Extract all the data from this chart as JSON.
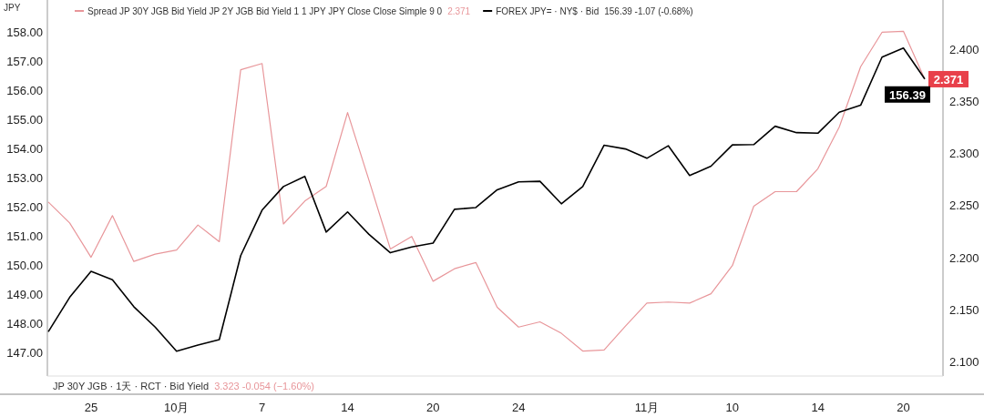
{
  "chart_data": {
    "type": "line",
    "ylabel": "JPY",
    "legend": "top left",
    "categories": [
      null,
      null,
      "25",
      null,
      null,
      null,
      "10月",
      null,
      null,
      null,
      "7",
      null,
      null,
      null,
      "14",
      null,
      null,
      null,
      "20",
      null,
      null,
      null,
      "24",
      null,
      null,
      null,
      null,
      null,
      "11月",
      null,
      null,
      null,
      "10",
      null,
      null,
      null,
      "14",
      null,
      null,
      null,
      "20",
      null
    ],
    "ylim": [
      146.2,
      159.1
    ],
    "yticks": [
      {
        "value": 147,
        "label": "147.00"
      },
      {
        "value": 148,
        "label": "148.00"
      },
      {
        "value": 149,
        "label": "149.00"
      },
      {
        "value": 150,
        "label": "150.00"
      },
      {
        "value": 151,
        "label": "151.00"
      },
      {
        "value": 152,
        "label": "152.00"
      },
      {
        "value": 153,
        "label": "153.00"
      },
      {
        "value": 154,
        "label": "154.00"
      },
      {
        "value": 155,
        "label": "155.00"
      },
      {
        "value": 156,
        "label": "156.00"
      },
      {
        "value": 157,
        "label": "157.00"
      },
      {
        "value": 158,
        "label": "158.00"
      }
    ],
    "y2lim": [
      2.086,
      2.447
    ],
    "y2ticks": [
      {
        "value": 2.1,
        "label": "2.100"
      },
      {
        "value": 2.15,
        "label": "2.150"
      },
      {
        "value": 2.2,
        "label": "2.200"
      },
      {
        "value": 2.25,
        "label": "2.250"
      },
      {
        "value": 2.3,
        "label": "2.300"
      },
      {
        "value": 2.35,
        "label": "2.350"
      },
      {
        "value": 2.4,
        "label": "2.400"
      }
    ],
    "series": [
      {
        "name": "Spread JP 30Y JGB Bid Yield JP 2Y JGB Bid Yield 1 1 JPY JPY Close Close Simple 9 0",
        "color": "#e8969a",
        "axis": "y2",
        "values": [
          2.253,
          2.233,
          2.2,
          2.24,
          2.196,
          2.203,
          2.207,
          2.231,
          2.215,
          2.38,
          2.386,
          2.232,
          2.254,
          2.268,
          2.339,
          2.274,
          2.208,
          2.22,
          2.177,
          2.189,
          2.195,
          2.152,
          2.133,
          2.138,
          2.127,
          2.11,
          2.111,
          2.134,
          2.156,
          2.157,
          2.156,
          2.165,
          2.192,
          2.249,
          2.263,
          2.263,
          2.285,
          2.325,
          2.383,
          2.416,
          2.417,
          2.371
        ],
        "value_labels": [
          null,
          null,
          null,
          null,
          null,
          null,
          null,
          null,
          null,
          null,
          null,
          null,
          null,
          null,
          null,
          null,
          null,
          null,
          null,
          null,
          null,
          null,
          null,
          null,
          null,
          null,
          null,
          null,
          null,
          null,
          null,
          null,
          null,
          null,
          null,
          null,
          null,
          null,
          null,
          null,
          null,
          "2.371"
        ]
      },
      {
        "name": "FOREX JPY= · NY$ · Bid",
        "color": "#000000",
        "axis": "y",
        "values": [
          147.72,
          148.9,
          149.79,
          149.5,
          148.58,
          147.88,
          147.05,
          147.26,
          147.45,
          150.33,
          151.89,
          152.7,
          153.05,
          151.14,
          151.83,
          151.06,
          150.43,
          150.63,
          150.76,
          151.92,
          151.98,
          152.59,
          152.86,
          152.88,
          152.11,
          152.7,
          154.12,
          153.99,
          153.67,
          154.1,
          153.08,
          153.4,
          154.13,
          154.14,
          154.77,
          154.55,
          154.53,
          155.25,
          155.49,
          157.14,
          157.45,
          156.39
        ],
        "value_labels": [
          null,
          null,
          null,
          null,
          null,
          null,
          null,
          null,
          null,
          null,
          null,
          null,
          null,
          null,
          null,
          null,
          null,
          null,
          null,
          null,
          null,
          null,
          null,
          null,
          null,
          null,
          null,
          null,
          null,
          null,
          null,
          null,
          null,
          null,
          null,
          null,
          null,
          null,
          null,
          null,
          null,
          "156.39"
        ]
      }
    ],
    "annotations": [
      "2.371",
      "156.39 -1.07 (-0.68%)",
      "JP 30Y JGB · 1天 · RCT · Bid Yield",
      "3.323 -0.054 (−1.60%)"
    ]
  }
}
